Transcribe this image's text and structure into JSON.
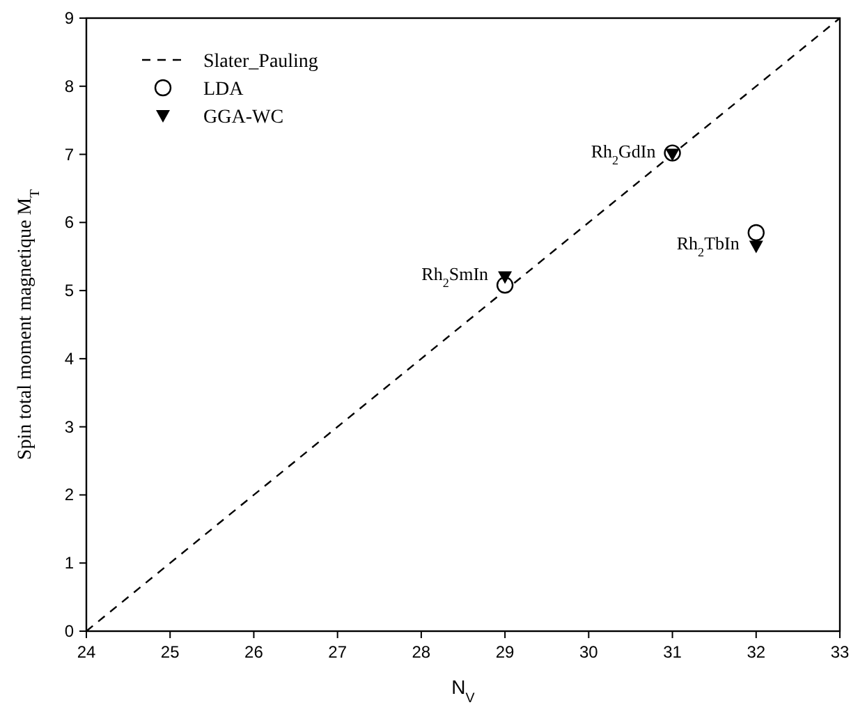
{
  "chart_data": {
    "type": "scatter",
    "xlabel": "N$_{V}$",
    "ylabel": "Spin total moment magnetique M$_{T}$",
    "xlim": [
      24,
      33
    ],
    "ylim": [
      0,
      9
    ],
    "xticks": [
      24,
      25,
      26,
      27,
      28,
      29,
      30,
      31,
      32,
      33
    ],
    "yticks": [
      0,
      1,
      2,
      3,
      4,
      5,
      6,
      7,
      8,
      9
    ],
    "grid": false,
    "legend": "top left",
    "series": [
      {
        "name": "Slater_Pauling",
        "type": "line",
        "line_style": "dashed",
        "marker": "none",
        "color": "#000000",
        "x": [
          24,
          33
        ],
        "values": [
          0,
          9
        ]
      },
      {
        "name": "LDA",
        "marker": "circle",
        "color": "#000000",
        "x": [
          29,
          31,
          32
        ],
        "values": [
          5.08,
          7.02,
          5.85
        ]
      },
      {
        "name": "GGA-WC",
        "marker": "triangle",
        "color": "#000000",
        "x": [
          29,
          31,
          32
        ],
        "values": [
          5.2,
          7.0,
          5.65
        ]
      }
    ],
    "annotations": [
      {
        "text": "Rh$_{2}$SmIn",
        "x": 29,
        "y": 5.2
      },
      {
        "text": "Rh$_{2}$GdIn",
        "x": 31,
        "y": 7.0
      },
      {
        "text": "Rh$_{2}$TbIn",
        "x": 32,
        "y": 5.65
      }
    ]
  }
}
